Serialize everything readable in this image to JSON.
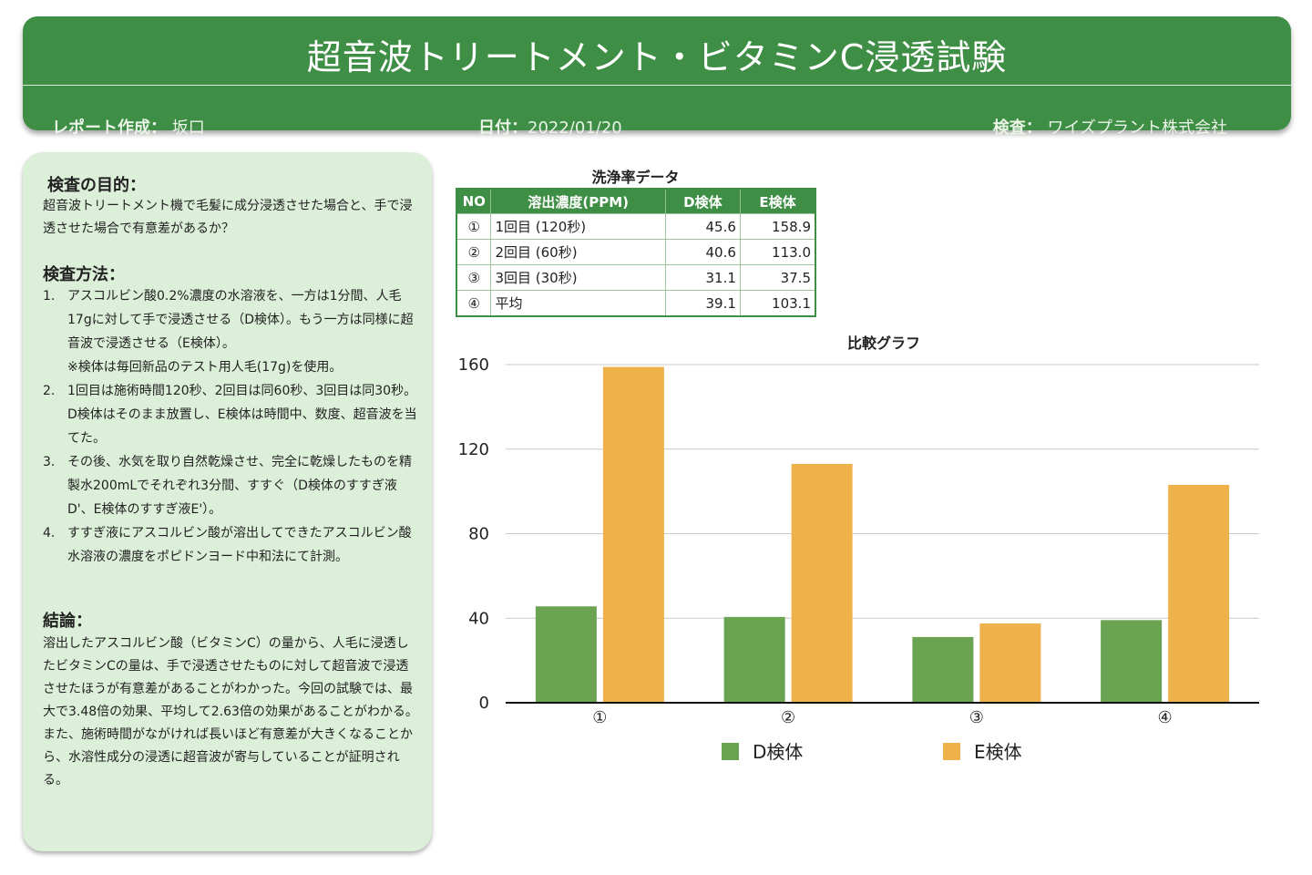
{
  "header": {
    "title": "超音波トリートメント・ビタミンC浸透試験",
    "author_label": "レポート作成：",
    "author": "坂口",
    "date_label": "日付：",
    "date": "2022/01/20",
    "inspect_label": "検査：",
    "inspect": "ワイズプラント株式会社"
  },
  "panel": {
    "purpose_heading": "検査の目的：",
    "purpose_text": "超音波トリートメント機で毛髪に成分浸透させた場合と、手で浸透させた場合で有意差があるか？",
    "method_heading": "検査方法：",
    "methods": [
      {
        "num": "1.",
        "text": "アスコルビン酸0.2%濃度の水溶液を、一方は1分間、人毛17gに対して手で浸透させる（D検体）。もう一方は同様に超音波で浸透させる（E検体）。",
        "note": "※検体は毎回新品のテスト用人毛(17g)を使用。"
      },
      {
        "num": "2.",
        "text": "1回目は施術時間120秒、2回目は同60秒、3回目は同30秒。D検体はそのまま放置し、E検体は時間中、数度、超音波を当てた。",
        "note": ""
      },
      {
        "num": "3.",
        "text": "その後、水気を取り自然乾燥させ、完全に乾燥したものを精製水200mLでそれぞれ3分間、すすぐ（D検体のすすぎ液D'、E検体のすすぎ液E'）。",
        "note": ""
      },
      {
        "num": "4.",
        "text": "すすぎ液にアスコルビン酸が溶出してできたアスコルビン酸水溶液の濃度をポピドンヨード中和法にて計測。",
        "note": ""
      }
    ],
    "conclusion_heading": "結論：",
    "conclusion_text": "溶出したアスコルビン酸（ビタミンC）の量から、人毛に浸透したビタミンCの量は、手で浸透させたものに対して超音波で浸透させたほうが有意差があることがわかった。今回の試験では、最大で3.48倍の効果、平均して2.63倍の効果があることがわかる。また、施術時間がながければ長いほど有意差が大きくなることから、水溶性成分の浸透に超音波が寄与していることが証明される。"
  },
  "table": {
    "title": "洗浄率データ",
    "headers": [
      "NO",
      "溶出濃度(PPM)",
      "D検体",
      "E検体"
    ],
    "rows": [
      {
        "no": "①",
        "label": "1回目 (120秒)",
        "d": "45.6",
        "e": "158.9"
      },
      {
        "no": "②",
        "label": "2回目 (60秒)",
        "d": "40.6",
        "e": "113.0"
      },
      {
        "no": "③",
        "label": "3回目 (30秒)",
        "d": "31.1",
        "e": "37.5"
      },
      {
        "no": "④",
        "label": "平均",
        "d": "39.1",
        "e": "103.1"
      }
    ]
  },
  "colors": {
    "header_green": "#3e8e45",
    "panel_bg": "#dcefd9",
    "series_d": "#6aa352",
    "series_e": "#efb14a"
  },
  "chart_data": {
    "type": "bar",
    "title": "比較グラフ",
    "categories": [
      "①",
      "②",
      "③",
      "④"
    ],
    "series": [
      {
        "name": "D検体",
        "values": [
          45.6,
          40.6,
          31.1,
          39.1
        ]
      },
      {
        "name": "E検体",
        "values": [
          158.9,
          113.0,
          37.5,
          103.1
        ]
      }
    ],
    "ylim": [
      0,
      160
    ],
    "yticks": [
      0,
      40,
      80,
      120,
      160
    ],
    "grid": true,
    "legend": "bottom"
  }
}
